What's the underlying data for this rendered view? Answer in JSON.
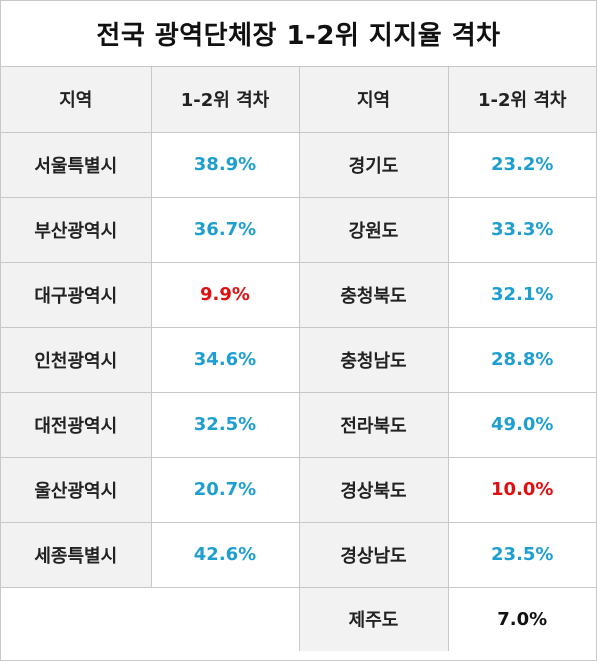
{
  "title": "전국 광역단체장 1-2위 지지율 격차",
  "headers": [
    "지역",
    "1-2위 격차",
    "지역",
    "1-2위 격차"
  ],
  "colors": {
    "normal": "#1f9fd0",
    "low": "#e01010",
    "neutral": "#111111"
  },
  "chart_data": {
    "type": "table",
    "title": "전국 광역단체장 1-2위 지지율 격차",
    "columns": [
      "지역",
      "1-2위 격차"
    ],
    "rows": [
      {
        "region": "서울특별시",
        "gap": "38.9%",
        "value": 38.9,
        "color": "normal"
      },
      {
        "region": "부산광역시",
        "gap": "36.7%",
        "value": 36.7,
        "color": "normal"
      },
      {
        "region": "대구광역시",
        "gap": "9.9%",
        "value": 9.9,
        "color": "low"
      },
      {
        "region": "인천광역시",
        "gap": "34.6%",
        "value": 34.6,
        "color": "normal"
      },
      {
        "region": "대전광역시",
        "gap": "32.5%",
        "value": 32.5,
        "color": "normal"
      },
      {
        "region": "울산광역시",
        "gap": "20.7%",
        "value": 20.7,
        "color": "normal"
      },
      {
        "region": "세종특별시",
        "gap": "42.6%",
        "value": 42.6,
        "color": "normal"
      },
      {
        "region": "경기도",
        "gap": "23.2%",
        "value": 23.2,
        "color": "normal"
      },
      {
        "region": "강원도",
        "gap": "33.3%",
        "value": 33.3,
        "color": "normal"
      },
      {
        "region": "충청북도",
        "gap": "32.1%",
        "value": 32.1,
        "color": "normal"
      },
      {
        "region": "충청남도",
        "gap": "28.8%",
        "value": 28.8,
        "color": "normal"
      },
      {
        "region": "전라북도",
        "gap": "49.0%",
        "value": 49.0,
        "color": "normal"
      },
      {
        "region": "경상북도",
        "gap": "10.0%",
        "value": 10.0,
        "color": "low"
      },
      {
        "region": "경상남도",
        "gap": "23.5%",
        "value": 23.5,
        "color": "normal"
      },
      {
        "region": "제주도",
        "gap": "7.0%",
        "value": 7.0,
        "color": "neutral"
      }
    ]
  }
}
